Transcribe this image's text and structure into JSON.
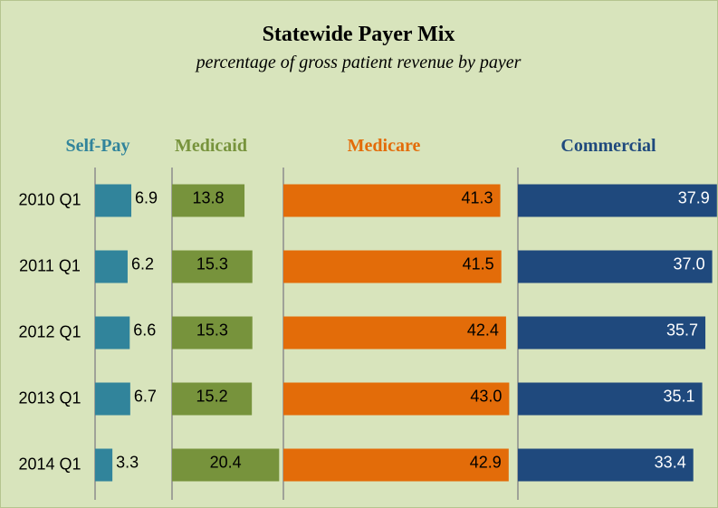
{
  "chart_data": {
    "type": "bar",
    "title": "Statewide Payer Mix",
    "subtitle": "percentage of gross patient revenue by payer",
    "categories": [
      "2010 Q1",
      "2011 Q1",
      "2012 Q1",
      "2013 Q1",
      "2014 Q1"
    ],
    "series": [
      {
        "name": "Self-Pay",
        "color": "#31849b",
        "values": [
          6.9,
          6.2,
          6.6,
          6.7,
          3.3
        ]
      },
      {
        "name": "Medicaid",
        "color": "#77933c",
        "values": [
          13.8,
          15.3,
          15.3,
          15.2,
          20.4
        ]
      },
      {
        "name": "Medicare",
        "color": "#e36c09",
        "values": [
          41.3,
          41.5,
          42.4,
          43.0,
          42.9
        ],
        "value_labels": [
          "41.3",
          "41.5",
          "42.4",
          "43.0",
          "42.9"
        ]
      },
      {
        "name": "Commercial",
        "color": "#1f497d",
        "values": [
          37.9,
          37.0,
          35.7,
          35.1,
          33.4
        ],
        "value_labels": [
          "37.9",
          "37.0",
          "35.7",
          "35.1",
          "33.4"
        ]
      }
    ]
  }
}
